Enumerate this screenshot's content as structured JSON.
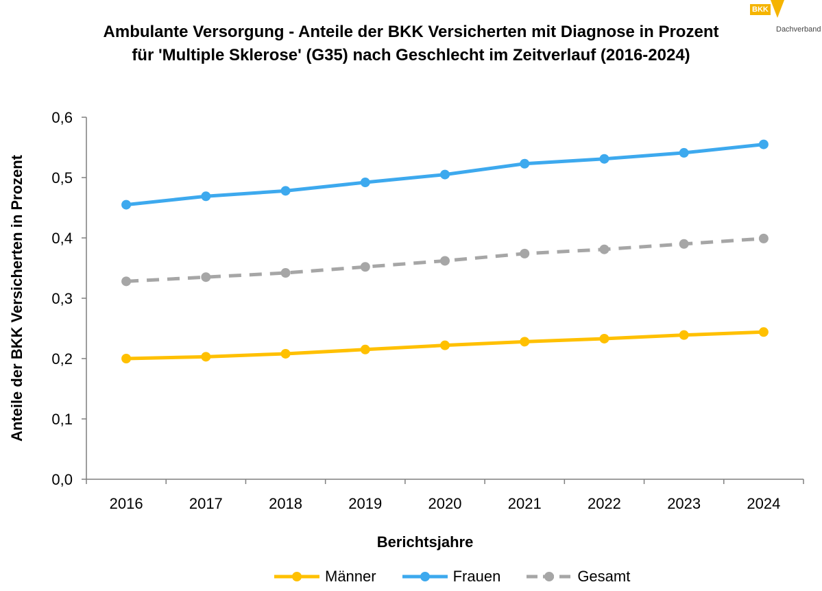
{
  "chart_data": {
    "type": "line",
    "title_line1": "Ambulante Versorgung - Anteile der BKK Versicherten mit Diagnose in Prozent",
    "title_line2": "für 'Multiple Sklerose' (G35) nach Geschlecht im Zeitverlauf (2016-2024)",
    "xlabel": "Berichtsjahre",
    "ylabel": "Anteile der BKK Versicherten in Prozent",
    "ylim": [
      0,
      0.6
    ],
    "yticks": [
      "0,0",
      "0,1",
      "0,2",
      "0,3",
      "0,4",
      "0,5",
      "0,6"
    ],
    "categories": [
      "2016",
      "2017",
      "2018",
      "2019",
      "2020",
      "2021",
      "2022",
      "2023",
      "2024"
    ],
    "grid": false,
    "legend_position": "bottom",
    "series": [
      {
        "name": "Männer",
        "color": "#FFC000",
        "dashed": false,
        "values": [
          0.2,
          0.203,
          0.208,
          0.215,
          0.222,
          0.228,
          0.233,
          0.239,
          0.244
        ]
      },
      {
        "name": "Frauen",
        "color": "#3DA9EE",
        "dashed": false,
        "values": [
          0.455,
          0.469,
          0.478,
          0.492,
          0.505,
          0.523,
          0.531,
          0.541,
          0.555
        ]
      },
      {
        "name": "Gesamt",
        "color": "#A6A6A6",
        "dashed": true,
        "values": [
          0.328,
          0.335,
          0.342,
          0.352,
          0.362,
          0.374,
          0.381,
          0.39,
          0.399
        ]
      }
    ]
  },
  "logo": {
    "mark": "BKK",
    "text": "Dachverband"
  }
}
